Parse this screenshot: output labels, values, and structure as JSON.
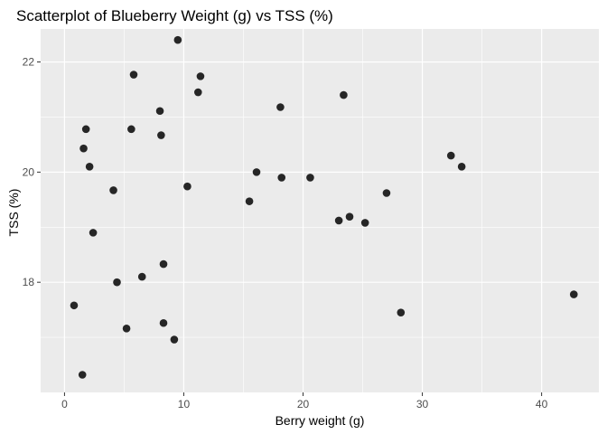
{
  "chart_data": {
    "type": "scatter",
    "title": "Scatterplot of Blueberry Weight (g) vs TSS (%)",
    "xlabel": "Berry weight (g)",
    "ylabel": "TSS (%)",
    "xlim": [
      -2.0,
      44.8
    ],
    "ylim": [
      16.0,
      22.6
    ],
    "x_ticks": [
      0,
      10,
      20,
      30,
      40
    ],
    "x_tick_labels": [
      "0",
      "10",
      "20",
      "30",
      "40"
    ],
    "y_ticks": [
      18,
      20,
      22
    ],
    "y_tick_labels": [
      "18",
      "20",
      "22"
    ],
    "grid": true,
    "legend": "none",
    "panel_color": "#ebebeb",
    "grid_color": "#ffffff",
    "point_color": "#262626",
    "points": [
      {
        "x": 0.8,
        "y": 17.58
      },
      {
        "x": 1.5,
        "y": 16.32
      },
      {
        "x": 1.6,
        "y": 20.43
      },
      {
        "x": 1.8,
        "y": 20.78
      },
      {
        "x": 2.1,
        "y": 20.1
      },
      {
        "x": 2.4,
        "y": 18.9
      },
      {
        "x": 4.1,
        "y": 19.67
      },
      {
        "x": 4.4,
        "y": 18.0
      },
      {
        "x": 5.2,
        "y": 17.16
      },
      {
        "x": 5.6,
        "y": 20.78
      },
      {
        "x": 5.8,
        "y": 21.77
      },
      {
        "x": 6.5,
        "y": 18.1
      },
      {
        "x": 8.0,
        "y": 21.11
      },
      {
        "x": 8.1,
        "y": 20.67
      },
      {
        "x": 8.3,
        "y": 18.33
      },
      {
        "x": 8.3,
        "y": 17.26
      },
      {
        "x": 9.2,
        "y": 16.96
      },
      {
        "x": 9.5,
        "y": 22.4
      },
      {
        "x": 10.3,
        "y": 19.74
      },
      {
        "x": 11.2,
        "y": 21.45
      },
      {
        "x": 11.4,
        "y": 21.74
      },
      {
        "x": 15.5,
        "y": 19.47
      },
      {
        "x": 16.1,
        "y": 20.0
      },
      {
        "x": 18.1,
        "y": 21.18
      },
      {
        "x": 18.2,
        "y": 19.9
      },
      {
        "x": 20.6,
        "y": 19.9
      },
      {
        "x": 23.0,
        "y": 19.12
      },
      {
        "x": 23.4,
        "y": 21.4
      },
      {
        "x": 23.9,
        "y": 19.19
      },
      {
        "x": 25.2,
        "y": 19.08
      },
      {
        "x": 27.0,
        "y": 19.62
      },
      {
        "x": 28.2,
        "y": 17.45
      },
      {
        "x": 32.4,
        "y": 20.3
      },
      {
        "x": 33.3,
        "y": 20.1
      },
      {
        "x": 42.7,
        "y": 17.78
      }
    ]
  }
}
